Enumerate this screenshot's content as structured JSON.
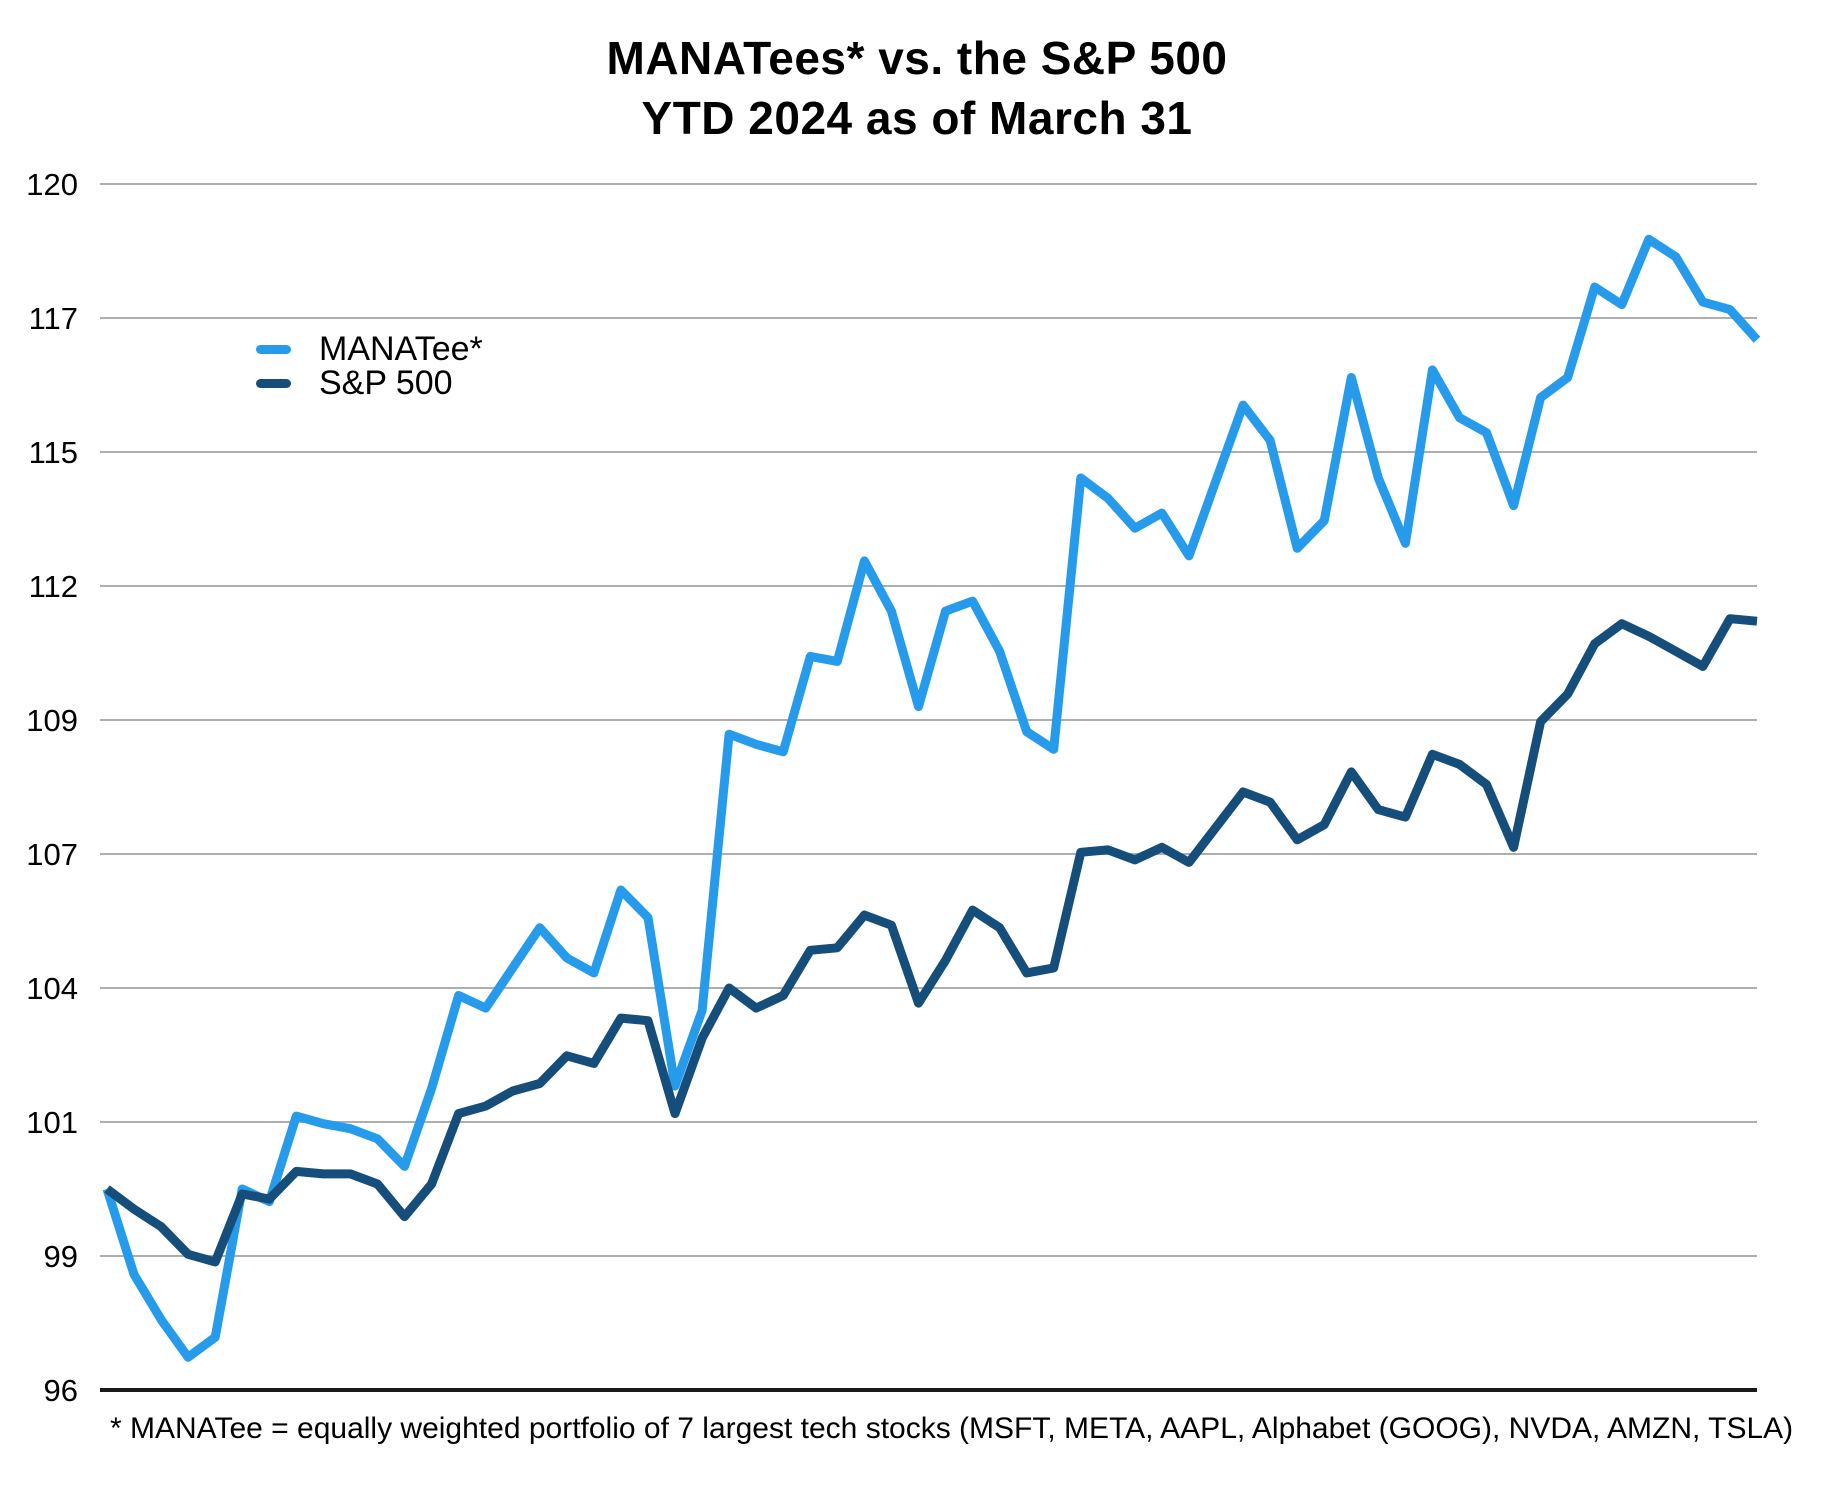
{
  "title": {
    "line1": "MANATees* vs. the S&P 500",
    "line2": "YTD 2024 as of March 31"
  },
  "legend": {
    "items": [
      {
        "label": "MANATee*",
        "color": "#269BEC"
      },
      {
        "label": "S&P 500",
        "color": "#164E7B"
      }
    ]
  },
  "footnote": "* MANATee = equally weighted portfolio of 7 largest tech stocks (MSFT, META, AAPL, Alphabet (GOOG), NVDA, AMZN, TSLA)",
  "colors": {
    "manatee_line": "#269BEC",
    "sp500_line": "#164E7B",
    "gridline": "#AEAEAE",
    "baseline_axis": "#1A1A1A",
    "text": "#000000",
    "background": "#FFFFFF"
  },
  "chart_data": {
    "type": "line",
    "title": "MANATees* vs. the S&P 500 — YTD 2024 as of March 31",
    "xlabel": "",
    "ylabel": "",
    "x_description": "Daily index values (baseline = 100), Dec 29 2023 through end of Q1 2024; no x-axis tick labels shown",
    "grid": true,
    "legend_position": "upper-left inside plot area",
    "y_axis": {
      "min": 96,
      "max": 120,
      "gridline_count": 10,
      "tick_labels_top_to_bottom": [
        "120",
        "117",
        "115",
        "112",
        "109",
        "107",
        "104",
        "101",
        "99",
        "96"
      ],
      "note": "gridlines evenly spaced every 2.667 units; printed labels are rounded to integers; bottom 96 line drawn as solid black axis"
    },
    "series": [
      {
        "name": "MANATee*",
        "color": "#269BEC",
        "values": [
          100.0,
          98.3,
          97.4,
          96.65,
          97.05,
          100.0,
          99.75,
          101.45,
          101.3,
          101.2,
          101.0,
          100.45,
          102.0,
          103.85,
          103.6,
          104.4,
          105.2,
          104.6,
          104.3,
          105.95,
          105.4,
          102.05,
          103.55,
          109.05,
          108.85,
          108.7,
          110.6,
          110.5,
          112.5,
          111.5,
          109.6,
          111.5,
          111.7,
          110.7,
          109.1,
          108.75,
          114.15,
          113.75,
          113.15,
          113.45,
          112.6,
          114.1,
          115.6,
          114.9,
          112.75,
          113.3,
          116.15,
          114.15,
          112.85,
          116.3,
          115.35,
          115.05,
          113.6,
          115.75,
          116.15,
          117.95,
          117.6,
          118.9,
          118.55,
          117.65,
          117.5,
          116.9
        ]
      },
      {
        "name": "S&P 500",
        "color": "#164E7B",
        "values": [
          100.0,
          99.6,
          99.25,
          98.7,
          98.55,
          99.9,
          99.8,
          100.35,
          100.3,
          100.3,
          100.1,
          99.45,
          100.1,
          101.5,
          101.65,
          101.95,
          102.1,
          102.65,
          102.5,
          103.4,
          103.35,
          101.5,
          103.0,
          104.0,
          103.6,
          103.85,
          104.75,
          104.8,
          105.45,
          105.25,
          103.7,
          104.55,
          105.55,
          105.2,
          104.3,
          104.4,
          106.7,
          106.75,
          106.55,
          106.8,
          106.5,
          107.2,
          107.9,
          107.7,
          106.95,
          107.25,
          108.3,
          107.55,
          107.4,
          108.65,
          108.45,
          108.05,
          106.8,
          109.3,
          109.85,
          110.85,
          111.25,
          111.0,
          110.7,
          110.4,
          111.35,
          111.3
        ]
      }
    ]
  }
}
